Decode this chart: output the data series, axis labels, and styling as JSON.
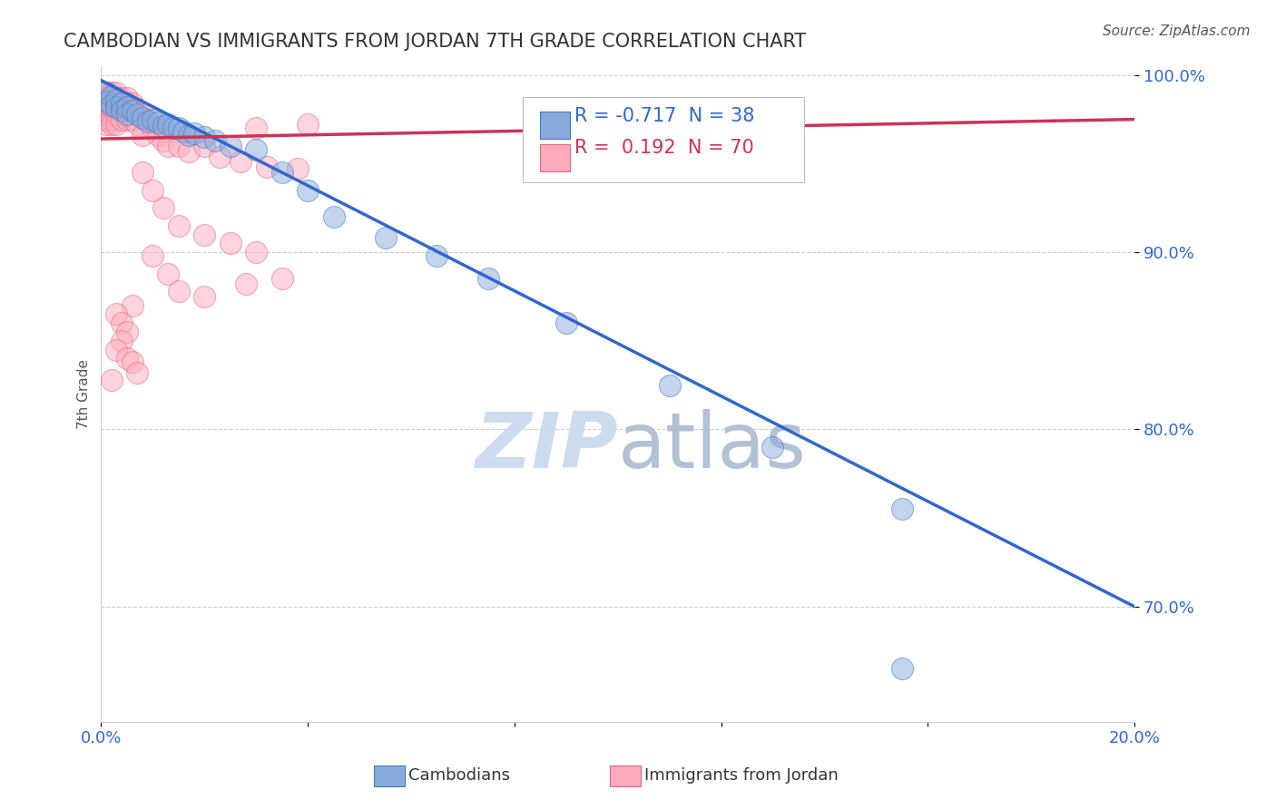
{
  "title": "CAMBODIAN VS IMMIGRANTS FROM JORDAN 7TH GRADE CORRELATION CHART",
  "source_text": "Source: ZipAtlas.com",
  "ylabel": "7th Grade",
  "xlim": [
    0.0,
    0.2
  ],
  "ylim": [
    0.635,
    1.005
  ],
  "xticks": [
    0.0,
    0.04,
    0.08,
    0.12,
    0.16,
    0.2
  ],
  "xtick_labels": [
    "0.0%",
    "",
    "",
    "",
    "",
    "20.0%"
  ],
  "yticks": [
    0.7,
    0.8,
    0.9,
    1.0
  ],
  "ytick_labels": [
    "70.0%",
    "80.0%",
    "90.0%",
    "100.0%"
  ],
  "blue_color": "#88AADD",
  "pink_color": "#FFAABB",
  "blue_edge_color": "#4477BB",
  "pink_edge_color": "#DD6688",
  "blue_line_color": "#3366CC",
  "pink_line_color": "#CC3355",
  "watermark_color": "#C8D8EE",
  "legend_R_blue": "-0.717",
  "legend_N_blue": "38",
  "legend_R_pink": "0.192",
  "legend_N_pink": "70",
  "legend_label_blue": "Cambodians",
  "legend_label_pink": "Immigrants from Jordan",
  "blue_scatter": [
    [
      0.001,
      0.99
    ],
    [
      0.001,
      0.985
    ],
    [
      0.002,
      0.988
    ],
    [
      0.002,
      0.983
    ],
    [
      0.003,
      0.986
    ],
    [
      0.003,
      0.982
    ],
    [
      0.004,
      0.984
    ],
    [
      0.004,
      0.98
    ],
    [
      0.005,
      0.982
    ],
    [
      0.005,
      0.978
    ],
    [
      0.006,
      0.98
    ],
    [
      0.007,
      0.978
    ],
    [
      0.008,
      0.976
    ],
    [
      0.009,
      0.974
    ],
    [
      0.01,
      0.975
    ],
    [
      0.011,
      0.973
    ],
    [
      0.012,
      0.971
    ],
    [
      0.013,
      0.972
    ],
    [
      0.014,
      0.97
    ],
    [
      0.015,
      0.97
    ],
    [
      0.016,
      0.968
    ],
    [
      0.017,
      0.966
    ],
    [
      0.018,
      0.967
    ],
    [
      0.02,
      0.965
    ],
    [
      0.022,
      0.963
    ],
    [
      0.025,
      0.96
    ],
    [
      0.03,
      0.958
    ],
    [
      0.035,
      0.945
    ],
    [
      0.04,
      0.935
    ],
    [
      0.045,
      0.92
    ],
    [
      0.055,
      0.908
    ],
    [
      0.065,
      0.898
    ],
    [
      0.075,
      0.885
    ],
    [
      0.09,
      0.86
    ],
    [
      0.11,
      0.825
    ],
    [
      0.13,
      0.79
    ],
    [
      0.155,
      0.755
    ],
    [
      0.155,
      0.665
    ]
  ],
  "pink_scatter": [
    [
      0.001,
      0.99
    ],
    [
      0.001,
      0.987
    ],
    [
      0.001,
      0.984
    ],
    [
      0.001,
      0.981
    ],
    [
      0.001,
      0.978
    ],
    [
      0.001,
      0.975
    ],
    [
      0.001,
      0.972
    ],
    [
      0.002,
      0.99
    ],
    [
      0.002,
      0.987
    ],
    [
      0.002,
      0.984
    ],
    [
      0.002,
      0.981
    ],
    [
      0.002,
      0.978
    ],
    [
      0.002,
      0.975
    ],
    [
      0.002,
      0.972
    ],
    [
      0.003,
      0.99
    ],
    [
      0.003,
      0.987
    ],
    [
      0.003,
      0.984
    ],
    [
      0.003,
      0.981
    ],
    [
      0.003,
      0.978
    ],
    [
      0.003,
      0.972
    ],
    [
      0.004,
      0.987
    ],
    [
      0.004,
      0.984
    ],
    [
      0.004,
      0.981
    ],
    [
      0.004,
      0.975
    ],
    [
      0.005,
      0.987
    ],
    [
      0.005,
      0.984
    ],
    [
      0.005,
      0.975
    ],
    [
      0.006,
      0.984
    ],
    [
      0.006,
      0.975
    ],
    [
      0.007,
      0.981
    ],
    [
      0.007,
      0.972
    ],
    [
      0.008,
      0.978
    ],
    [
      0.008,
      0.966
    ],
    [
      0.009,
      0.975
    ],
    [
      0.01,
      0.97
    ],
    [
      0.011,
      0.966
    ],
    [
      0.012,
      0.963
    ],
    [
      0.013,
      0.96
    ],
    [
      0.015,
      0.96
    ],
    [
      0.017,
      0.957
    ],
    [
      0.02,
      0.96
    ],
    [
      0.023,
      0.954
    ],
    [
      0.027,
      0.951
    ],
    [
      0.032,
      0.948
    ],
    [
      0.038,
      0.947
    ],
    [
      0.008,
      0.945
    ],
    [
      0.01,
      0.935
    ],
    [
      0.012,
      0.925
    ],
    [
      0.015,
      0.915
    ],
    [
      0.02,
      0.91
    ],
    [
      0.025,
      0.905
    ],
    [
      0.03,
      0.9
    ],
    [
      0.01,
      0.898
    ],
    [
      0.013,
      0.888
    ],
    [
      0.015,
      0.878
    ],
    [
      0.02,
      0.875
    ],
    [
      0.028,
      0.882
    ],
    [
      0.035,
      0.885
    ],
    [
      0.006,
      0.87
    ],
    [
      0.003,
      0.865
    ],
    [
      0.004,
      0.86
    ],
    [
      0.005,
      0.855
    ],
    [
      0.004,
      0.85
    ],
    [
      0.003,
      0.845
    ],
    [
      0.005,
      0.84
    ],
    [
      0.006,
      0.838
    ],
    [
      0.007,
      0.832
    ],
    [
      0.002,
      0.828
    ],
    [
      0.03,
      0.97
    ],
    [
      0.04,
      0.972
    ]
  ],
  "blue_line_x": [
    0.0,
    0.2
  ],
  "blue_line_y": [
    0.997,
    0.7
  ],
  "pink_line_x": [
    0.0,
    0.2
  ],
  "pink_line_y": [
    0.964,
    0.975
  ],
  "grid_color": "#CCCCCC",
  "background_color": "#FFFFFF"
}
